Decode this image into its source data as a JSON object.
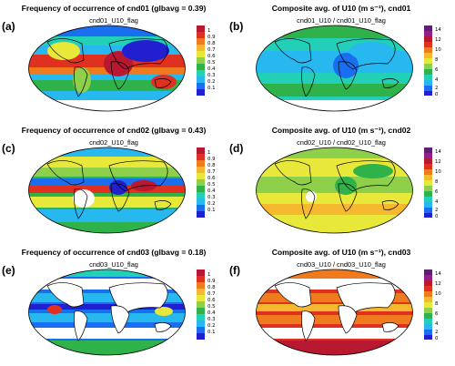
{
  "colors": {
    "freq_scale": [
      "#2020d0",
      "#1a6ef0",
      "#27b8f0",
      "#22d0b8",
      "#2fb24a",
      "#8fd04a",
      "#e8e83a",
      "#f5b82e",
      "#f07a1e",
      "#e03020",
      "#b81830"
    ],
    "u10_scale": [
      "#2020d0",
      "#1a6ef0",
      "#27b8f0",
      "#22d0b8",
      "#2fb24a",
      "#8fd04a",
      "#e8e83a",
      "#f5b82e",
      "#f07a1e",
      "#e03020",
      "#b81830",
      "#902090",
      "#602070"
    ]
  },
  "freq_ticks": [
    "1",
    "0.9",
    "0.8",
    "0.7",
    "0.6",
    "0.5",
    "0.4",
    "0.3",
    "0.2",
    "0.1"
  ],
  "u10_ticks": [
    "14",
    "12",
    "10",
    "8",
    "6",
    "4",
    "2",
    "0"
  ],
  "panels": [
    {
      "label": "(a)",
      "title": "Frequency of occurrence of cnd01 (glbavg =  0.39)",
      "subtitle": "cnd01_U10_flag",
      "scale": "freq"
    },
    {
      "label": "(b)",
      "title": "Composite avg. of U10 (m s⁻¹), cnd01",
      "subtitle": "cnd01_U10 / cnd01_U10_flag",
      "scale": "u10"
    },
    {
      "label": "(c)",
      "title": "Frequency of occurrence of cnd02 (glbavg =  0.43)",
      "subtitle": "cnd02_U10_flag",
      "scale": "freq"
    },
    {
      "label": "(d)",
      "title": "Composite avg. of U10 (m s⁻¹), cnd02",
      "subtitle": "cnd02_U10 / cnd02_U10_flag",
      "scale": "u10"
    },
    {
      "label": "(e)",
      "title": "Frequency of occurrence of cnd03 (glbavg =  0.18)",
      "subtitle": "cnd03_U10_flag",
      "scale": "freq"
    },
    {
      "label": "(f)",
      "title": "Composite avg. of U10 (m s⁻¹), cnd03",
      "subtitle": "cnd03_U10 / cnd03_U10_flag",
      "scale": "u10"
    }
  ]
}
